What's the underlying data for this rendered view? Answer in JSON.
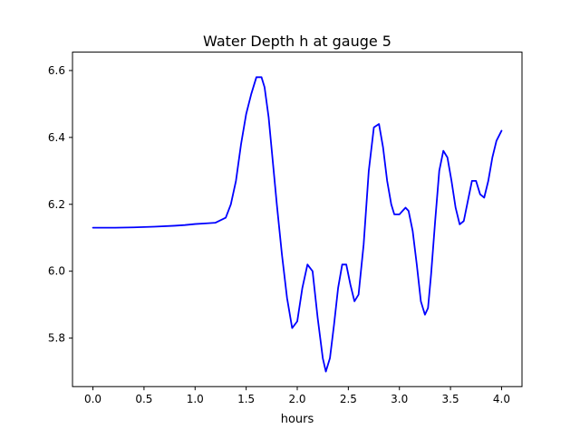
{
  "chart_data": {
    "type": "line",
    "title": "Water Depth h at gauge 5",
    "xlabel": "hours",
    "ylabel": "",
    "xlim": [
      -0.2,
      4.2
    ],
    "ylim": [
      5.655,
      6.655
    ],
    "xticks": [
      0.0,
      0.5,
      1.0,
      1.5,
      2.0,
      2.5,
      3.0,
      3.5,
      4.0
    ],
    "xtick_labels": [
      "0.0",
      "0.5",
      "1.0",
      "1.5",
      "2.0",
      "2.5",
      "3.0",
      "3.5",
      "4.0"
    ],
    "yticks": [
      5.8,
      6.0,
      6.2,
      6.4,
      6.6
    ],
    "ytick_labels": [
      "5.8",
      "6.0",
      "6.2",
      "6.4",
      "6.6"
    ],
    "grid": false,
    "line_color": "#0000ff",
    "series": [
      {
        "x": [
          0.0,
          0.2,
          0.4,
          0.6,
          0.8,
          0.9,
          1.0,
          1.1,
          1.2,
          1.3,
          1.35,
          1.4,
          1.45,
          1.5,
          1.55,
          1.6,
          1.65,
          1.68,
          1.72,
          1.76,
          1.8,
          1.85,
          1.9,
          1.95,
          2.0,
          2.05,
          2.1,
          2.15,
          2.2,
          2.25,
          2.28,
          2.32,
          2.36,
          2.4,
          2.44,
          2.48,
          2.52,
          2.56,
          2.6,
          2.65,
          2.7,
          2.75,
          2.8,
          2.84,
          2.88,
          2.92,
          2.95,
          3.0,
          3.03,
          3.06,
          3.09,
          3.13,
          3.17,
          3.21,
          3.25,
          3.28,
          3.31,
          3.35,
          3.39,
          3.43,
          3.47,
          3.51,
          3.55,
          3.59,
          3.63,
          3.67,
          3.71,
          3.75,
          3.79,
          3.83,
          3.87,
          3.91,
          3.95,
          4.0
        ],
        "y": [
          6.13,
          6.13,
          6.131,
          6.133,
          6.136,
          6.138,
          6.141,
          6.143,
          6.145,
          6.16,
          6.2,
          6.27,
          6.38,
          6.47,
          6.53,
          6.58,
          6.58,
          6.55,
          6.46,
          6.33,
          6.2,
          6.05,
          5.92,
          5.83,
          5.85,
          5.95,
          6.02,
          6.0,
          5.86,
          5.74,
          5.7,
          5.74,
          5.84,
          5.95,
          6.02,
          6.02,
          5.96,
          5.91,
          5.93,
          6.08,
          6.3,
          6.43,
          6.44,
          6.37,
          6.27,
          6.2,
          6.17,
          6.17,
          6.18,
          6.19,
          6.18,
          6.12,
          6.02,
          5.91,
          5.87,
          5.89,
          5.99,
          6.15,
          6.3,
          6.36,
          6.34,
          6.27,
          6.19,
          6.14,
          6.15,
          6.21,
          6.27,
          6.27,
          6.23,
          6.22,
          6.27,
          6.34,
          6.39,
          6.42
        ]
      }
    ]
  }
}
